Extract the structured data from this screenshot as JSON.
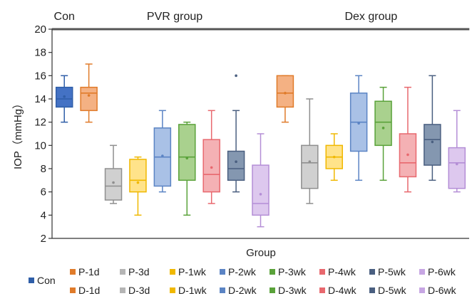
{
  "chart_data": {
    "type": "box",
    "xlabel": "Group",
    "ylabel": "IOP（mmHg）",
    "ylim": [
      2,
      20
    ],
    "yticks": [
      2,
      4,
      6,
      8,
      10,
      12,
      14,
      16,
      18,
      20
    ],
    "grid": false,
    "group_labels": [
      {
        "label": "Con",
        "from": 0,
        "to": 0
      },
      {
        "label": "PVR group",
        "from": 1,
        "to": 8
      },
      {
        "label": "Dex group",
        "from": 9,
        "to": 16
      }
    ],
    "series": [
      {
        "name": "Con",
        "color": "#2f5ea8",
        "fill": "#4472c4",
        "min": 12,
        "q1": 13.3,
        "median": 14,
        "q3": 15,
        "max": 16,
        "mean": 14.2,
        "outliers": []
      },
      {
        "name": "P-1d",
        "color": "#e07b2a",
        "fill": "#f4b183",
        "min": 12,
        "q1": 13,
        "median": 14.5,
        "q3": 15,
        "max": 17,
        "mean": 14.3,
        "outliers": []
      },
      {
        "name": "P-3d",
        "color": "#8f8f8f",
        "fill": "#d0d0d0",
        "min": 5,
        "q1": 5.3,
        "median": 6.5,
        "q3": 8,
        "max": 10,
        "mean": 6.8,
        "outliers": []
      },
      {
        "name": "P-1wk",
        "color": "#f0b800",
        "fill": "#ffe38a",
        "min": 4,
        "q1": 6,
        "median": 7,
        "q3": 8.8,
        "max": 9,
        "mean": 6.8,
        "outliers": []
      },
      {
        "name": "P-2wk",
        "color": "#5b84c4",
        "fill": "#a9c1e6",
        "min": 6,
        "q1": 6.5,
        "median": 9,
        "q3": 11.5,
        "max": 13,
        "mean": 9.1,
        "outliers": []
      },
      {
        "name": "P-3wk",
        "color": "#5aa23a",
        "fill": "#a9d18e",
        "min": 4,
        "q1": 7,
        "median": 9,
        "q3": 11.8,
        "max": 12,
        "mean": 8.9,
        "outliers": []
      },
      {
        "name": "P-4wk",
        "color": "#e8686e",
        "fill": "#f4b1b4",
        "min": 5,
        "q1": 6,
        "median": 7.5,
        "q3": 10.5,
        "max": 13,
        "mean": 8.1,
        "outliers": []
      },
      {
        "name": "P-5wk",
        "color": "#4a5f80",
        "fill": "#8497b0",
        "min": 6,
        "q1": 7,
        "median": 8,
        "q3": 9.5,
        "max": 13,
        "mean": 8.6,
        "outliers": [
          16
        ]
      },
      {
        "name": "P-6wk",
        "color": "#b48ed6",
        "fill": "#ddc8ee",
        "min": 3,
        "q1": 4,
        "median": 5,
        "q3": 8.3,
        "max": 11,
        "mean": 5.8,
        "outliers": []
      },
      {
        "name": "D-1d",
        "color": "#e07b2a",
        "fill": "#f4b183",
        "min": 12,
        "q1": 13.3,
        "median": 14.5,
        "q3": 16,
        "max": 16,
        "mean": 14.5,
        "outliers": []
      },
      {
        "name": "D-3d",
        "color": "#8f8f8f",
        "fill": "#d0d0d0",
        "min": 5,
        "q1": 6.3,
        "median": 8.5,
        "q3": 10,
        "max": 14,
        "mean": 8.6,
        "outliers": []
      },
      {
        "name": "D-1wk",
        "color": "#f0b800",
        "fill": "#ffe38a",
        "min": 7,
        "q1": 8,
        "median": 9,
        "q3": 10,
        "max": 11,
        "mean": 9,
        "outliers": []
      },
      {
        "name": "D-2wk",
        "color": "#5b84c4",
        "fill": "#a9c1e6",
        "min": 7,
        "q1": 9.5,
        "median": 12,
        "q3": 14.5,
        "max": 16,
        "mean": 11.9,
        "outliers": []
      },
      {
        "name": "D-3wk",
        "color": "#5aa23a",
        "fill": "#a9d18e",
        "min": 7,
        "q1": 10,
        "median": 12,
        "q3": 13.8,
        "max": 15,
        "mean": 11.5,
        "outliers": []
      },
      {
        "name": "D-4wk",
        "color": "#e8686e",
        "fill": "#f4b1b4",
        "min": 6,
        "q1": 7.3,
        "median": 8.5,
        "q3": 11,
        "max": 15,
        "mean": 9.2,
        "outliers": []
      },
      {
        "name": "D-5wk",
        "color": "#4a5f80",
        "fill": "#8497b0",
        "min": 7,
        "q1": 8.3,
        "median": 10.5,
        "q3": 11.8,
        "max": 16,
        "mean": 10.3,
        "outliers": []
      },
      {
        "name": "D-6wk",
        "color": "#b48ed6",
        "fill": "#ddc8ee",
        "min": 6,
        "q1": 6.3,
        "median": 8.5,
        "q3": 9.8,
        "max": 13,
        "mean": 8.4,
        "outliers": []
      }
    ]
  },
  "legend": {
    "main": {
      "label": "Con",
      "color": "#2f5ea8"
    },
    "row1": [
      {
        "label": "P-1d",
        "color": "#e07b2a"
      },
      {
        "label": "P-3d",
        "color": "#b5b5b5"
      },
      {
        "label": "P-1wk",
        "color": "#f0b800"
      },
      {
        "label": "P-2wk",
        "color": "#5b84c4"
      },
      {
        "label": "P-3wk",
        "color": "#5aa23a"
      },
      {
        "label": "P-4wk",
        "color": "#e8686e"
      },
      {
        "label": "P-5wk",
        "color": "#4a5f80"
      },
      {
        "label": "P-6wk",
        "color": "#c7a6e3"
      }
    ],
    "row2": [
      {
        "label": "D-1d",
        "color": "#e07b2a"
      },
      {
        "label": "D-3d",
        "color": "#b5b5b5"
      },
      {
        "label": "D-1wk",
        "color": "#f0b800"
      },
      {
        "label": "D-2wk",
        "color": "#5b84c4"
      },
      {
        "label": "D-3wk",
        "color": "#5aa23a"
      },
      {
        "label": "D-4wk",
        "color": "#e8686e"
      },
      {
        "label": "D-5wk",
        "color": "#4a5f80"
      },
      {
        "label": "D-6wk",
        "color": "#c7a6e3"
      }
    ]
  }
}
